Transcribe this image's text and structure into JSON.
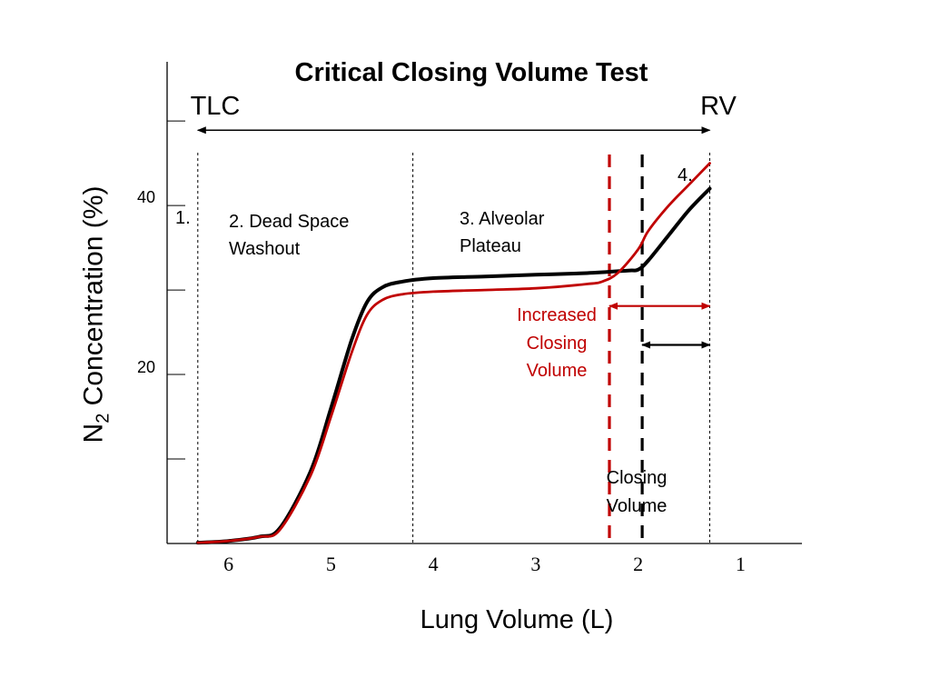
{
  "chart_data": {
    "type": "line",
    "title": "Critical Closing Volume Test",
    "xlabel": "Lung Volume (L)",
    "ylabel": {
      "pre": "N",
      "sub": "2",
      "post": " Concentration (%)"
    },
    "x_tick_labels": [
      "6",
      "5",
      "4",
      "3",
      "2",
      "1"
    ],
    "x_tick_values": [
      6,
      5,
      4,
      3,
      2,
      1
    ],
    "xlim": [
      6.6,
      0.4
    ],
    "y_tick_labels": [
      "40",
      "20"
    ],
    "y_tick_values": [
      40,
      20
    ],
    "y_minor_ticks": [
      10,
      30,
      50
    ],
    "ylim": [
      0,
      57
    ],
    "series": [
      {
        "color": "#000000",
        "x": [
          6.3,
          6.0,
          5.7,
          5.5,
          5.2,
          5.0,
          4.8,
          4.65,
          4.5,
          4.3,
          4.0,
          3.5,
          3.0,
          2.5,
          2.1,
          2.0,
          1.9,
          1.7,
          1.5,
          1.3
        ],
        "y": [
          0.1,
          0.3,
          0.8,
          1.8,
          8.5,
          16.0,
          24.0,
          28.5,
          30.3,
          31.0,
          31.4,
          31.6,
          31.8,
          32.0,
          32.3,
          32.4,
          33.5,
          36.5,
          39.5,
          42.0
        ]
      },
      {
        "color": "#c00000",
        "x": [
          6.3,
          6.0,
          5.7,
          5.5,
          5.2,
          5.0,
          4.8,
          4.65,
          4.5,
          4.3,
          4.0,
          3.5,
          3.0,
          2.5,
          2.35,
          2.2,
          2.0,
          1.9,
          1.7,
          1.5,
          1.3
        ],
        "y": [
          0.1,
          0.3,
          0.8,
          1.6,
          8.0,
          15.0,
          22.5,
          27.0,
          28.8,
          29.5,
          29.8,
          30.0,
          30.2,
          30.7,
          31.0,
          32.0,
          34.8,
          37.0,
          40.0,
          42.5,
          45.0
        ]
      }
    ],
    "boundaries": [
      {
        "x": 6.3,
        "style": "dotted"
      },
      {
        "x": 4.2,
        "style": "dotted"
      },
      {
        "x": 1.3,
        "style": "dotted"
      }
    ],
    "closing_markers": [
      {
        "x": 2.28,
        "color": "#c00000",
        "style": "dashed"
      },
      {
        "x": 1.96,
        "color": "#000000",
        "style": "dashed"
      }
    ],
    "range_arrows": [
      {
        "x_from": 6.3,
        "x_to": 1.3,
        "y": 48.9,
        "color": "#000000"
      },
      {
        "x_from": 2.28,
        "x_to": 1.3,
        "y": 28.1,
        "color": "#c00000"
      },
      {
        "x_from": 1.96,
        "x_to": 1.3,
        "y": 23.5,
        "color": "#000000"
      }
    ],
    "annotations": {
      "tlc": "TLC",
      "rv": "RV",
      "phase1": "1.",
      "phase2_line1": "2. Dead Space",
      "phase2_line2": "Washout",
      "phase3_line1": "3. Alveolar",
      "phase3_line2": "Plateau",
      "phase4": "4.",
      "increased_line1": "Increased",
      "increased_line2": "Closing",
      "increased_line3": "Volume",
      "closing_line1": "Closing",
      "closing_line2": "Volume"
    }
  },
  "colors": {
    "black": "#000000",
    "red": "#c00000"
  }
}
